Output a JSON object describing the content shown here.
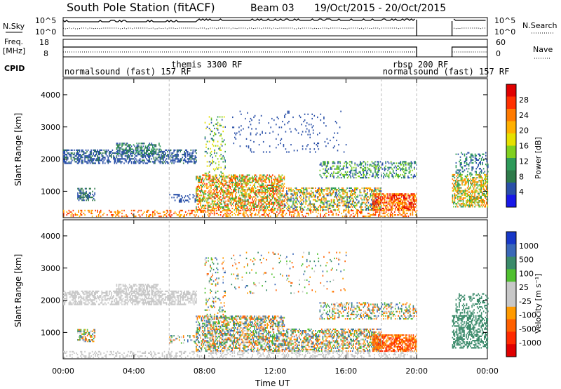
{
  "header": {
    "station": "South Pole Station (fitACF)",
    "beam": "Beam 03",
    "date_range": "19/Oct/2015 - 20/Oct/2015"
  },
  "labels": {
    "nsky": "N.Sky",
    "nsearch": "N.Search",
    "freq": "Freq.",
    "mhz": "[MHz]",
    "nave": "Nave",
    "cpid": "CPID",
    "ylabel": "Slant Range [km]",
    "xlabel": "Time UT",
    "power_label": "Power [dB]",
    "velocity_label": "Velocity [m s⁻¹]"
  },
  "noise_ticks": {
    "high": "10^5",
    "low": "10^0"
  },
  "freq_ticks": {
    "high": "18",
    "low": "8"
  },
  "nave_ticks": {
    "high": "60",
    "low": "0"
  },
  "cpid_segments": [
    {
      "label": "normalsound (fast) 157 RF",
      "row": "lower"
    },
    {
      "label": "themis 3300 RF",
      "row": "upper"
    },
    {
      "label": "rbsp 200 RF",
      "row": "upper"
    },
    {
      "label": "normalsound (fast) 157 RF",
      "row": "lower"
    }
  ],
  "power_scale": {
    "ticks": [
      "28",
      "24",
      "20",
      "16",
      "12",
      "8",
      "4"
    ],
    "colors": [
      "#e00000",
      "#ff3000",
      "#ff7a00",
      "#ffb000",
      "#e6e000",
      "#80d020",
      "#2e9a5a",
      "#2e7a4a",
      "#2a50a8",
      "#1818e8"
    ]
  },
  "velocity_scale": {
    "ticks": [
      "1000",
      "500",
      "100",
      "25",
      "-25",
      "-100",
      "-500",
      "-1000"
    ],
    "colors": [
      "#1838c8",
      "#3a68b8",
      "#3a8a6a",
      "#50c030",
      "#c8c8c8",
      "#c8c8c8",
      "#ff9a00",
      "#ff6000",
      "#ff2a00",
      "#e00000"
    ]
  },
  "chart_data": {
    "type": "heatmap",
    "panels": [
      "power",
      "velocity"
    ],
    "x_ticks": [
      "00:00",
      "04:00",
      "08:00",
      "12:00",
      "16:00",
      "20:00",
      "00:00"
    ],
    "y_ticks": [
      "1000",
      "2000",
      "3000",
      "4000"
    ],
    "x_range_hours": [
      0,
      24
    ],
    "y_range_km": [
      180,
      4500
    ],
    "data_gap_hours": [
      20.0,
      22.0
    ],
    "cpid_change_hours": [
      6.0,
      18.0,
      20.0
    ]
  }
}
